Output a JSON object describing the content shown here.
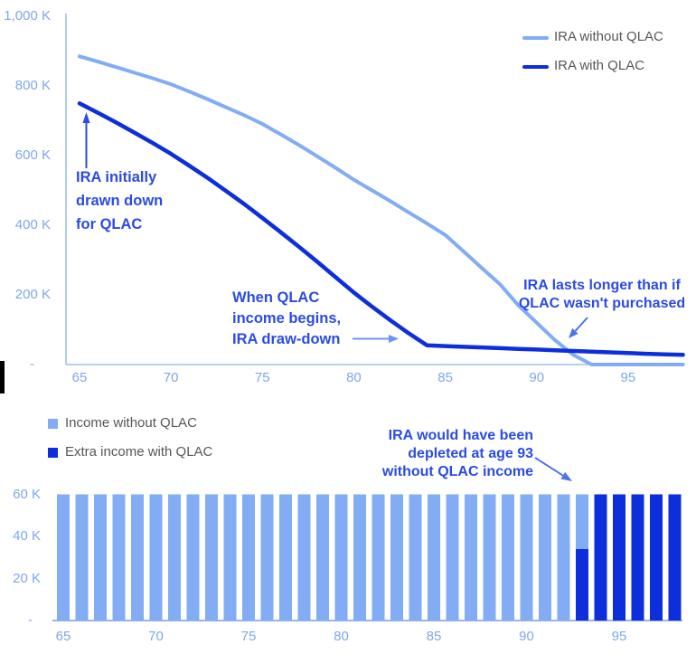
{
  "background": "#ffffff",
  "colors": {
    "light_blue": "#82adf4",
    "dark_blue": "#0c2fdb",
    "axis_label": "#7ea7f0",
    "axis_line": "#9dbdf3",
    "legend_text": "#575757",
    "annotation_text": "#2b4be4",
    "arrow_light": "#6e96f0",
    "arrow_medium": "#4d74e9"
  },
  "chart_data": [
    {
      "type": "line",
      "title": "",
      "ages": [
        65,
        66,
        67,
        68,
        69,
        70,
        71,
        72,
        73,
        74,
        75,
        76,
        77,
        78,
        79,
        80,
        81,
        82,
        83,
        84,
        85,
        86,
        87,
        88,
        89,
        90,
        91,
        92,
        93,
        94,
        95,
        96,
        97,
        98
      ],
      "x_axis": {
        "ticks": [
          65,
          70,
          75,
          80,
          85,
          90,
          95
        ],
        "range": [
          65,
          98
        ]
      },
      "y_axis": {
        "tick_labels": [
          "1,000 K",
          "800 K",
          "600 K",
          "400 K",
          "200 K"
        ],
        "tick_values": [
          1000,
          800,
          600,
          400,
          200
        ],
        "zero_label": "-",
        "unit": "K (thousands of dollars)",
        "range": [
          0,
          1000
        ]
      },
      "grid": false,
      "legend_position": "top-right",
      "series": [
        {
          "name": "IRA without QLAC",
          "color": "#82adf4",
          "values": [
            885,
            870,
            854,
            838,
            822,
            805,
            784,
            762,
            739,
            716,
            691,
            661,
            630,
            598,
            565,
            531,
            500,
            469,
            437,
            405,
            372,
            325,
            277,
            230,
            170,
            120,
            70,
            28,
            0,
            0,
            0,
            0,
            0,
            0
          ]
        },
        {
          "name": "IRA with QLAC",
          "color": "#0c2fdb",
          "values": [
            750,
            723,
            695,
            666,
            636,
            605,
            571,
            536,
            499,
            461,
            421,
            380,
            338,
            295,
            251,
            207,
            166,
            127,
            90,
            55,
            53,
            51,
            49,
            47,
            45,
            43,
            41,
            39,
            37,
            35,
            33,
            31,
            29,
            28
          ]
        }
      ],
      "annotations": [
        {
          "id": "ira-initially-drawn-down",
          "lines": [
            "IRA initially",
            "drawn down",
            "for QLAC"
          ]
        },
        {
          "id": "when-qlac-income-begins",
          "lines": [
            "When QLAC",
            "income begins,",
            "IRA draw-down"
          ]
        },
        {
          "id": "ira-lasts-longer",
          "lines": [
            "IRA lasts longer than if",
            "QLAC wasn't purchased"
          ]
        }
      ]
    },
    {
      "type": "bar",
      "stacked": true,
      "title": "",
      "ages": [
        65,
        66,
        67,
        68,
        69,
        70,
        71,
        72,
        73,
        74,
        75,
        76,
        77,
        78,
        79,
        80,
        81,
        82,
        83,
        84,
        85,
        86,
        87,
        88,
        89,
        90,
        91,
        92,
        93,
        94,
        95,
        96,
        97,
        98
      ],
      "x_axis": {
        "ticks": [
          65,
          70,
          75,
          80,
          85,
          90,
          95
        ],
        "range": [
          65,
          98
        ]
      },
      "y_axis": {
        "tick_labels": [
          "60 K",
          "40 K",
          "20 K"
        ],
        "tick_values": [
          60,
          40,
          20
        ],
        "zero_label": "-",
        "unit": "K (thousands of dollars)",
        "range": [
          0,
          60
        ]
      },
      "grid": false,
      "legend_position": "top-left",
      "series": [
        {
          "name": "Income without QLAC",
          "color": "#82adf4",
          "values": [
            60,
            60,
            60,
            60,
            60,
            60,
            60,
            60,
            60,
            60,
            60,
            60,
            60,
            60,
            60,
            60,
            60,
            60,
            60,
            60,
            60,
            60,
            60,
            60,
            60,
            60,
            60,
            60,
            26,
            0,
            0,
            0,
            0,
            0
          ]
        },
        {
          "name": "Extra income with QLAC",
          "color": "#0c2fdb",
          "values": [
            0,
            0,
            0,
            0,
            0,
            0,
            0,
            0,
            0,
            0,
            0,
            0,
            0,
            0,
            0,
            0,
            0,
            0,
            0,
            0,
            0,
            0,
            0,
            0,
            0,
            0,
            0,
            0,
            34,
            60,
            60,
            60,
            60,
            60
          ]
        }
      ],
      "stack_note": "At age 93 the dark (extra income) segment sits at the bottom (0-34K) with the light segment above it (34-60K); total income is 60K every year.",
      "annotations": [
        {
          "id": "depleted-at-93",
          "lines": [
            "IRA would have been",
            "depleted at age 93",
            "without QLAC income"
          ]
        }
      ]
    }
  ]
}
